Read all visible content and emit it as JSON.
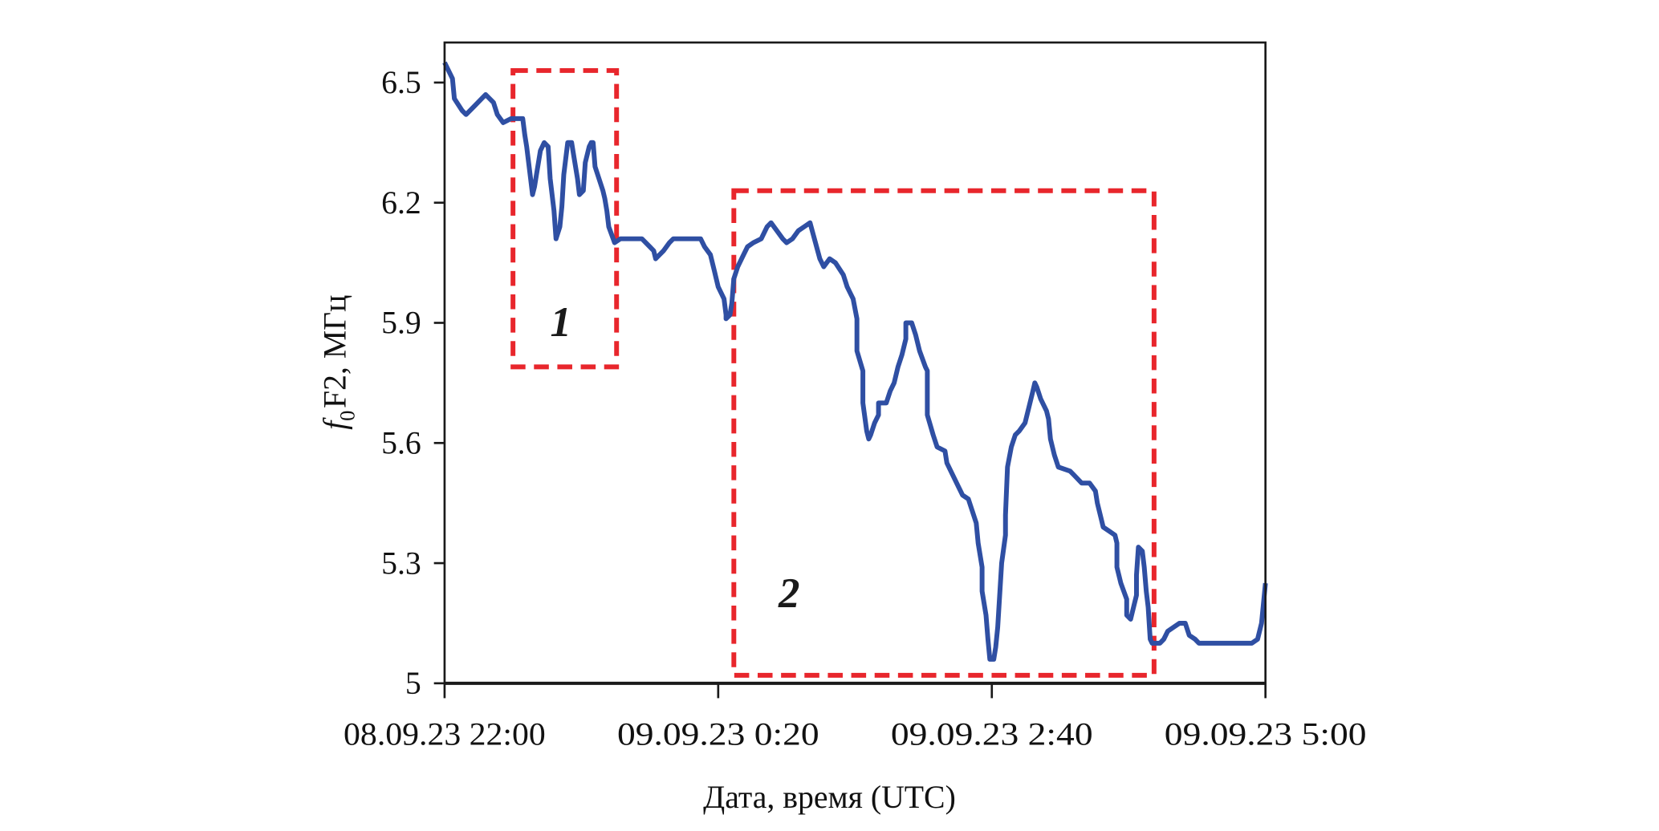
{
  "chart_data": {
    "type": "line",
    "xlabel": "Дата, время (UTC)",
    "ylabel": {
      "italic": "f",
      "subscript": "0",
      "rest": "F2, МГц"
    },
    "xlim": [
      "08.09.23 22:00",
      "09.09.23 5:00"
    ],
    "ylim": [
      5,
      6.6
    ],
    "x_ticks": [
      "08.09.23 22:00",
      "09.09.23 0:20",
      "09.09.23 2:40",
      "09.09.23 5:00"
    ],
    "y_ticks": [
      "6.5",
      "6.2",
      "5.9",
      "5.6",
      "5.3",
      "5"
    ],
    "grid": false,
    "legend": "none",
    "colors": {
      "series": "#2f4fa3",
      "annotation": "#e8262c",
      "axis": "#1a1a1a"
    },
    "series": [
      {
        "x": [
          "08.09.23 22:00",
          "08.09.23 22:04",
          "08.09.23 22:05",
          "08.09.23 22:09",
          "08.09.23 22:11",
          "08.09.23 22:15",
          "08.09.23 22:19",
          "08.09.23 22:21",
          "08.09.23 22:25",
          "08.09.23 22:27",
          "08.09.23 22:30",
          "08.09.23 22:34",
          "08.09.23 22:40",
          "08.09.23 22:41",
          "08.09.23 22:42",
          "08.09.23 22:44",
          "08.09.23 22:45",
          "08.09.23 22:46",
          "08.09.23 22:47",
          "08.09.23 22:49",
          "08.09.23 22:51",
          "08.09.23 22:53",
          "08.09.23 22:54",
          "08.09.23 22:56",
          "08.09.23 22:57",
          "08.09.23 22:59",
          "08.09.23 23:00",
          "08.09.23 23:01",
          "08.09.23 23:03",
          "08.09.23 23:05",
          "08.09.23 23:06",
          "08.09.23 23:08",
          "08.09.23 23:09",
          "08.09.23 23:11",
          "08.09.23 23:12",
          "08.09.23 23:14",
          "08.09.23 23:15",
          "08.09.23 23:16",
          "08.09.23 23:17",
          "08.09.23 23:19",
          "08.09.23 23:21",
          "08.09.23 23:22",
          "08.09.23 23:23",
          "08.09.23 23:24",
          "08.09.23 23:27",
          "08.09.23 23:30",
          "08.09.23 23:41",
          "08.09.23 23:45",
          "08.09.23 23:47",
          "08.09.23 23:48",
          "08.09.23 23:50",
          "08.09.23 23:52",
          "08.09.23 23:55",
          "08.09.23 23:57",
          "09.09.23 0:11",
          "09.09.23 0:13",
          "09.09.23 0:16",
          "09.09.23 0:18",
          "09.09.23 0:20",
          "09.09.23 0:23",
          "09.09.23 0:24",
          "09.09.23 0:24",
          "09.09.23 0:26",
          "09.09.23 0:27",
          "09.09.23 0:28",
          "09.09.23 0:30",
          "09.09.23 0:33",
          "09.09.23 0:35",
          "09.09.23 0:38",
          "09.09.23 0:42",
          "09.09.23 0:45",
          "09.09.23 0:47",
          "09.09.23 0:50",
          "09.09.23 0:53",
          "09.09.23 0:55",
          "09.09.23 0:58",
          "09.09.23 1:01",
          "09.09.23 1:04",
          "09.09.23 1:07",
          "09.09.23 1:12",
          "09.09.23 1:14",
          "09.09.23 1:17",
          "09.09.23 1:20",
          "09.09.23 1:24",
          "09.09.23 1:26",
          "09.09.23 1:29",
          "09.09.23 1:31",
          "09.09.23 1:31",
          "09.09.23 1:34",
          "09.09.23 1:34",
          "09.09.23 1:36",
          "09.09.23 1:37",
          "09.09.23 1:38",
          "09.09.23 1:40",
          "09.09.23 1:42",
          "09.09.23 1:42",
          "09.09.23 1:46",
          "09.09.23 1:48",
          "09.09.23 1:50",
          "09.09.23 1:52",
          "09.09.23 1:54",
          "09.09.23 1:56",
          "09.09.23 1:56",
          "09.09.23 1:59",
          "09.09.23 2:01",
          "09.09.23 2:03",
          "09.09.23 2:06",
          "09.09.23 2:07",
          "09.09.23 2:07",
          "09.09.23 2:10",
          "09.09.23 2:12",
          "09.09.23 2:16",
          "09.09.23 2:17",
          "09.09.23 2:20",
          "09.09.23 2:23",
          "09.09.23 2:25",
          "09.09.23 2:28",
          "09.09.23 2:30",
          "09.09.23 2:32",
          "09.09.23 2:33",
          "09.09.23 2:35",
          "09.09.23 2:35",
          "09.09.23 2:37",
          "09.09.23 2:38",
          "09.09.23 2:39",
          "09.09.23 2:41",
          "09.09.23 2:42",
          "09.09.23 2:43",
          "09.09.23 2:45",
          "09.09.23 2:47",
          "09.09.23 2:47",
          "09.09.23 2:48",
          "09.09.23 2:50",
          "09.09.23 2:52",
          "09.09.23 2:54",
          "09.09.23 2:57",
          "09.09.23 2:59",
          "09.09.23 3:01",
          "09.09.23 3:02",
          "09.09.23 3:03",
          "09.09.23 3:05",
          "09.09.23 3:08",
          "09.09.23 3:09",
          "09.09.23 3:10",
          "09.09.23 3:12",
          "09.09.23 3:14",
          "09.09.23 3:20",
          "09.09.23 3:22",
          "09.09.23 3:26",
          "09.09.23 3:30",
          "09.09.23 3:33",
          "09.09.23 3:34",
          "09.09.23 3:36",
          "09.09.23 3:37",
          "09.09.23 3:40",
          "09.09.23 3:43",
          "09.09.23 3:44",
          "09.09.23 3:44",
          "09.09.23 3:46",
          "09.09.23 3:49",
          "09.09.23 3:49",
          "09.09.23 3:51",
          "09.09.23 3:52",
          "09.09.23 3:54",
          "09.09.23 3:54",
          "09.09.23 3:55",
          "09.09.23 3:57",
          "09.09.23 3:58",
          "09.09.23 3:59",
          "09.09.23 4:00",
          "09.09.23 4:01",
          "09.09.23 4:02",
          "09.09.23 4:06",
          "09.09.23 4:08",
          "09.09.23 4:10",
          "09.09.23 4:13",
          "09.09.23 4:16",
          "09.09.23 4:19",
          "09.09.23 4:21",
          "09.09.23 4:24",
          "09.09.23 4:26",
          "09.09.23 4:53",
          "09.09.23 4:56",
          "09.09.23 4:58",
          "09.09.23 5:00"
        ],
        "y": [
          6.55,
          6.51,
          6.46,
          6.43,
          6.42,
          6.44,
          6.46,
          6.47,
          6.45,
          6.42,
          6.4,
          6.41,
          6.41,
          6.37,
          6.34,
          6.26,
          6.22,
          6.24,
          6.27,
          6.33,
          6.35,
          6.34,
          6.26,
          6.18,
          6.11,
          6.14,
          6.19,
          6.27,
          6.35,
          6.35,
          6.32,
          6.26,
          6.22,
          6.23,
          6.3,
          6.34,
          6.35,
          6.35,
          6.29,
          6.26,
          6.23,
          6.21,
          6.18,
          6.14,
          6.1,
          6.11,
          6.11,
          6.09,
          6.08,
          6.06,
          6.07,
          6.08,
          6.1,
          6.11,
          6.11,
          6.09,
          6.07,
          6.03,
          5.99,
          5.96,
          5.92,
          5.91,
          5.92,
          5.95,
          6.01,
          6.04,
          6.07,
          6.09,
          6.1,
          6.11,
          6.14,
          6.15,
          6.13,
          6.11,
          6.1,
          6.11,
          6.13,
          6.14,
          6.15,
          6.06,
          6.04,
          6.06,
          6.05,
          6.02,
          5.99,
          5.96,
          5.91,
          5.83,
          5.78,
          5.7,
          5.63,
          5.61,
          5.62,
          5.65,
          5.67,
          5.7,
          5.7,
          5.73,
          5.75,
          5.79,
          5.82,
          5.86,
          5.9,
          5.9,
          5.87,
          5.83,
          5.79,
          5.78,
          5.67,
          5.62,
          5.59,
          5.58,
          5.55,
          5.52,
          5.49,
          5.47,
          5.46,
          5.43,
          5.4,
          5.35,
          5.29,
          5.23,
          5.17,
          5.11,
          5.06,
          5.06,
          5.09,
          5.14,
          5.3,
          5.37,
          5.42,
          5.54,
          5.59,
          5.62,
          5.63,
          5.65,
          5.69,
          5.73,
          5.75,
          5.74,
          5.71,
          5.68,
          5.66,
          5.61,
          5.57,
          5.54,
          5.53,
          5.52,
          5.5,
          5.5,
          5.48,
          5.45,
          5.41,
          5.39,
          5.38,
          5.37,
          5.35,
          5.29,
          5.25,
          5.21,
          5.17,
          5.16,
          5.18,
          5.22,
          5.27,
          5.34,
          5.33,
          5.29,
          5.23,
          5.19,
          5.11,
          5.1,
          5.1,
          5.11,
          5.13,
          5.14,
          5.15,
          5.15,
          5.12,
          5.11,
          5.1,
          5.1,
          5.11,
          5.15,
          5.25
        ]
      }
    ],
    "annotations": [
      {
        "label": "1",
        "x0": "08.09.23 22:35",
        "x1": "08.09.23 23:28",
        "y0": 5.79,
        "y1": 6.53
      },
      {
        "label": "2",
        "x0": "09.09.23 0:28",
        "x1": "09.09.23 4:03",
        "y0": 5.02,
        "y1": 6.23
      }
    ]
  }
}
